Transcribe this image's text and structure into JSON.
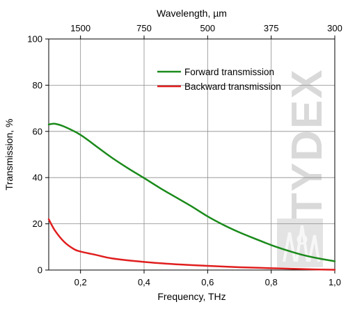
{
  "chart_data": {
    "type": "line",
    "xlabel": "Frequency, THz",
    "ylabel": "Transmission, %",
    "top_axis_label": "Wavelength, µm",
    "xlim": [
      0.1,
      1.0
    ],
    "ylim": [
      0,
      100
    ],
    "x_ticks": [
      0.2,
      0.4,
      0.6,
      0.8,
      1.0
    ],
    "x_tick_labels": [
      "0,2",
      "0,4",
      "0,6",
      "0,8",
      "1,0"
    ],
    "y_ticks": [
      0,
      20,
      40,
      60,
      80,
      100
    ],
    "y_tick_labels": [
      "0",
      "20",
      "40",
      "60",
      "80",
      "100"
    ],
    "top_ticks_wavelength_um": [
      1500,
      750,
      500,
      375,
      300
    ],
    "top_tick_labels": [
      "1500",
      "750",
      "500",
      "375",
      "300"
    ],
    "grid": true,
    "legend_position": "top-right",
    "series": [
      {
        "name": "Forward transmission",
        "color": "#1a8a1a",
        "x": [
          0.1,
          0.12,
          0.15,
          0.2,
          0.25,
          0.3,
          0.35,
          0.4,
          0.45,
          0.5,
          0.55,
          0.6,
          0.65,
          0.7,
          0.75,
          0.8,
          0.85,
          0.9,
          0.95,
          1.0
        ],
        "y": [
          63,
          63.3,
          62,
          58.5,
          53.5,
          48.5,
          44,
          39.8,
          35.5,
          31.5,
          27.5,
          23.2,
          19.5,
          16.3,
          13.5,
          10.8,
          8.5,
          6.5,
          5,
          3.8
        ]
      },
      {
        "name": "Backward transmission",
        "color": "#e01e1e",
        "x": [
          0.1,
          0.12,
          0.15,
          0.18,
          0.2,
          0.25,
          0.3,
          0.4,
          0.5,
          0.6,
          0.7,
          0.8,
          0.9,
          1.0
        ],
        "y": [
          22,
          17,
          12,
          9,
          8,
          6.5,
          5,
          3.5,
          2.5,
          1.8,
          1.2,
          0.8,
          0.4,
          0.1
        ]
      }
    ]
  },
  "watermark": {
    "text": "TYDEX"
  }
}
